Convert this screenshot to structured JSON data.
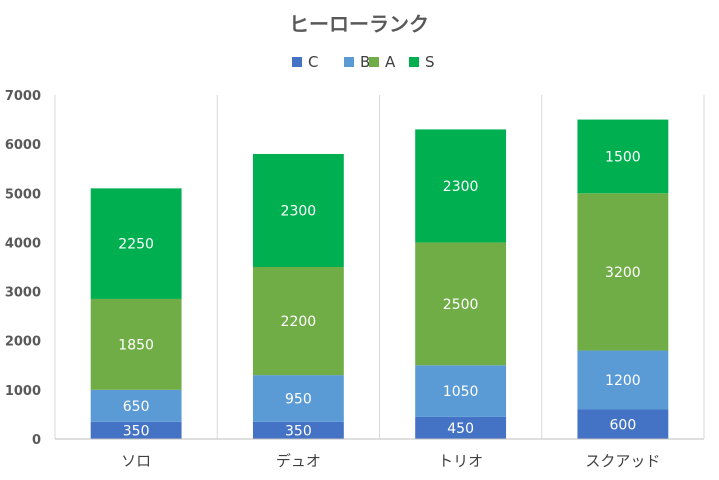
{
  "chart_data": {
    "type": "bar",
    "stacked": true,
    "title": "ヒーローランク",
    "categories": [
      "ソロ",
      "デュオ",
      "トリオ",
      "スクアッド"
    ],
    "series": [
      {
        "name": "C",
        "values": [
          350,
          350,
          450,
          600
        ],
        "color": "#4472C4"
      },
      {
        "name": "B",
        "values": [
          650,
          950,
          1050,
          1200
        ],
        "color": "#5B9BD5"
      },
      {
        "name": "A",
        "values": [
          1850,
          2200,
          2500,
          3200
        ],
        "color": "#70AD47"
      },
      {
        "name": "S",
        "values": [
          2250,
          2300,
          2300,
          1500
        ],
        "color": "#00B050"
      }
    ],
    "ylim": [
      0,
      7000
    ],
    "yticks": [
      0,
      1000,
      2000,
      3000,
      4000,
      5000,
      6000,
      7000
    ],
    "xlabel": "",
    "ylabel": "",
    "legend_position": "top",
    "grid": "vertical category dividers"
  }
}
